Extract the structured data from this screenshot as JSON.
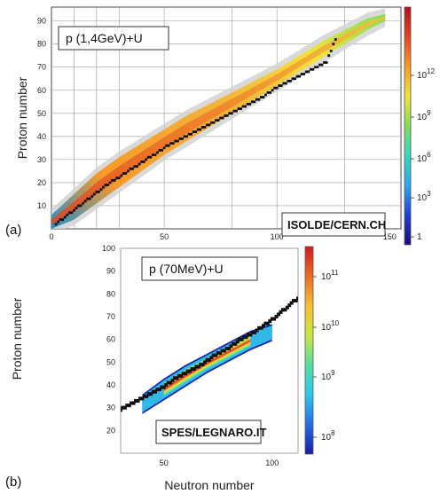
{
  "chart_data": [
    {
      "panel_label": "(a)",
      "type": "heatmap",
      "xlabel": "",
      "ylabel": "Proton number",
      "xlim": [
        0,
        155
      ],
      "ylim": [
        0,
        96
      ],
      "x_ticks": [
        0,
        50,
        100,
        150
      ],
      "y_ticks": [
        10,
        20,
        30,
        40,
        50,
        60,
        70,
        80,
        90
      ],
      "annotation": "p (1,4GeV)+U",
      "credit": "ISOLDE/CERN.CH",
      "grid": true,
      "colorbar": {
        "scale": "log",
        "ticks": [
          "1",
          "10^3",
          "10^6",
          "10^9",
          "10^12"
        ],
        "colors": [
          "#1a0a7a",
          "#1f3fd0",
          "#2aa8f0",
          "#39d6c0",
          "#7ce05a",
          "#f4e23a",
          "#f79a2a",
          "#e2461f",
          "#b01218"
        ]
      },
      "colors": {
        "envelope": "#c8c8c8",
        "stable_line": "#111111"
      },
      "band": {
        "x": [
          0,
          10,
          20,
          30,
          40,
          50,
          60,
          70,
          80,
          90,
          100,
          110,
          120,
          130,
          140,
          148
        ],
        "z_low": [
          0,
          4,
          11,
          18,
          25,
          32,
          38,
          44,
          50,
          56,
          62,
          68,
          74,
          80,
          86,
          90
        ],
        "z_high": [
          6,
          15,
          24,
          31,
          37,
          43,
          49,
          54,
          59,
          64,
          69,
          75,
          81,
          86,
          91,
          93
        ]
      },
      "stable_line": {
        "n": [
          2,
          6,
          10,
          14,
          18,
          22,
          26,
          30,
          34,
          38,
          42,
          46,
          50,
          54,
          58,
          62,
          66,
          70,
          74,
          78,
          82,
          86,
          90,
          94,
          98,
          102,
          106,
          110,
          114,
          118,
          122,
          126
        ],
        "z": [
          2,
          5,
          8,
          11,
          14,
          17,
          20,
          22,
          25,
          27,
          30,
          32,
          35,
          37,
          39,
          41,
          43,
          45,
          47,
          49,
          51,
          53,
          55,
          57,
          60,
          62,
          64,
          66,
          68,
          70,
          72,
          82
        ]
      }
    },
    {
      "panel_label": "(b)",
      "type": "heatmap",
      "xlabel": "Neutron number",
      "ylabel": "Proton number",
      "xlim": [
        30,
        112
      ],
      "ylim": [
        10,
        100
      ],
      "x_ticks": [
        50,
        100
      ],
      "y_ticks": [
        20,
        30,
        40,
        50,
        60,
        70,
        80,
        90,
        100
      ],
      "annotation": "p (70MeV)+U",
      "credit": "SPES/LEGNARO.IT",
      "grid": false,
      "colorbar": {
        "scale": "log",
        "ticks": [
          "10^8",
          "10^9",
          "10^10",
          "10^11"
        ],
        "colors": [
          "#1a1ab0",
          "#1f6fe8",
          "#2ac8f0",
          "#4fe0a0",
          "#c8e83a",
          "#f7c02a",
          "#f06a22",
          "#d81818"
        ]
      },
      "colors": {
        "stable_line": "#111111"
      },
      "band": {
        "x": [
          40,
          50,
          60,
          70,
          80,
          90,
          100
        ],
        "z_low": [
          28,
          34,
          40,
          46,
          51,
          56,
          60
        ],
        "z_high": [
          35,
          42,
          48,
          53,
          58,
          63,
          66
        ]
      },
      "stable_line": {
        "n": [
          30,
          36,
          42,
          48,
          54,
          60,
          66,
          72,
          78,
          84,
          90,
          96,
          102,
          108,
          112
        ],
        "z": [
          29,
          32,
          35,
          38,
          42,
          45,
          48,
          52,
          55,
          59,
          62,
          66,
          70,
          75,
          78
        ]
      }
    }
  ]
}
